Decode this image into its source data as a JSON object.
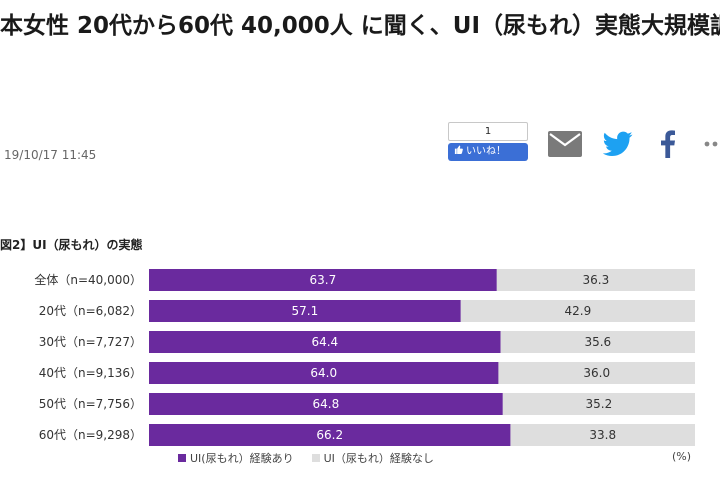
{
  "article": {
    "headline": "本女性 20代から60代 40,000人 に聞く、UI（尿もれ）実態大規模調",
    "date": "19/10/17 11:45"
  },
  "like": {
    "count": "1",
    "label": "いいね！"
  },
  "share_icons": [
    "mail-icon",
    "twitter-icon",
    "facebook-icon",
    "more-icon"
  ],
  "colors": {
    "purple": "#6a2a9e",
    "gray": "#dedede",
    "like_blue": "#3b6fd6",
    "twitter": "#1da1f2",
    "facebook": "#3b5998",
    "mail": "#7a7a7a"
  },
  "chart_data": {
    "type": "bar",
    "stacked": true,
    "orientation": "horizontal",
    "title": "図2】UI（尿もれ）の実態",
    "categories": [
      "全体（n=40,000）",
      "20代（n=6,082）",
      "30代（n=7,727）",
      "40代（n=9,136）",
      "50代（n=7,756）",
      "60代（n=9,298）"
    ],
    "series": [
      {
        "name": "UI(尿もれ）経験あり",
        "color": "#6a2a9e",
        "values": [
          63.7,
          57.1,
          64.4,
          64.0,
          64.8,
          66.2
        ]
      },
      {
        "name": "UI（尿もれ）経験なし",
        "color": "#dedede",
        "values": [
          36.3,
          42.9,
          35.6,
          36.0,
          35.2,
          33.8
        ]
      }
    ],
    "value_labels_1": [
      "63.7",
      "57.1",
      "64.4",
      "64.0",
      "64.8",
      "66.2"
    ],
    "value_labels_2": [
      "36.3",
      "42.9",
      "35.6",
      "36.0",
      "35.2",
      "33.8"
    ],
    "xlim": [
      0,
      100
    ],
    "unit": "(%)",
    "legend_position": "bottom"
  }
}
